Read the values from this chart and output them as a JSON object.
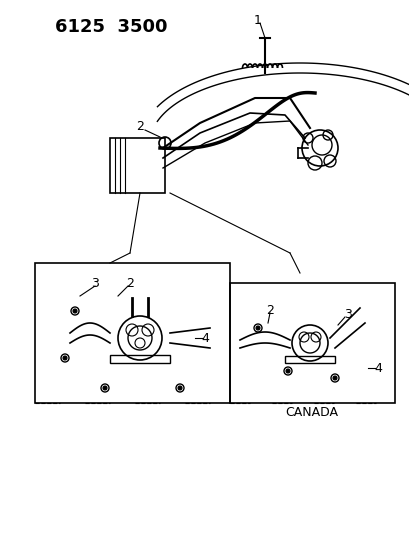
{
  "title": "6125  3500",
  "background_color": "#ffffff",
  "line_color": "#000000",
  "label_color": "#000000",
  "title_fontsize": 13,
  "label_fontsize": 9,
  "canada_label": "CANADA",
  "part_labels": [
    "1",
    "2",
    "3",
    "4"
  ],
  "figsize": [
    4.1,
    5.33
  ],
  "dpi": 100
}
